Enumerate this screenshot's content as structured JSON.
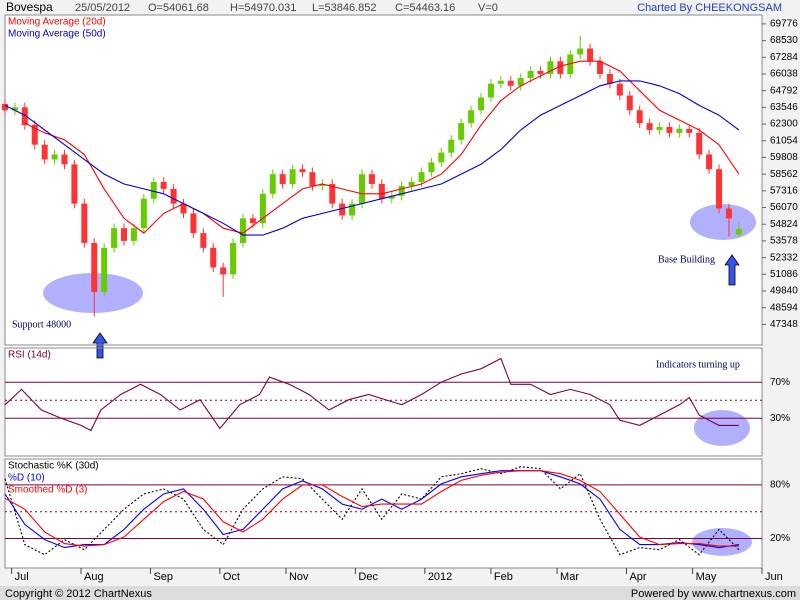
{
  "header": {
    "symbol": "Bovespa",
    "date": "25/05/2012",
    "open": "O=54061.68",
    "high": "H=54970.031",
    "low": "L=53846.852",
    "close": "C=54463.16",
    "volume": "V=0",
    "credit": "Charted By CHEEKONGSAM"
  },
  "chart_data": [
    {
      "type": "candlestick",
      "up_color": "#66cc00",
      "down_color": "#ff3333",
      "grid": false,
      "x": [
        0,
        3,
        6,
        9,
        12,
        15,
        18,
        21,
        24,
        27,
        30,
        33,
        36,
        39,
        42,
        45,
        48,
        51,
        54,
        57,
        60,
        63,
        66,
        69,
        72,
        75,
        78,
        81,
        84,
        87,
        90,
        93,
        96,
        99,
        102,
        105,
        108,
        111,
        114,
        117,
        120,
        123,
        126,
        129,
        132,
        135,
        138,
        141,
        144,
        147,
        150,
        153,
        156,
        159,
        162,
        165,
        168,
        171,
        174,
        177,
        180,
        183,
        186,
        189,
        192,
        195,
        198,
        201,
        204,
        207,
        210,
        213,
        216,
        219,
        222
      ],
      "open": [
        63800,
        63330,
        63550,
        62230,
        60760,
        59660,
        60030,
        59290,
        56360,
        53430,
        49770,
        53060,
        54530,
        53580,
        54530,
        56730,
        57980,
        57460,
        56360,
        55630,
        54160,
        53060,
        51600,
        51080,
        53430,
        55260,
        54900,
        57100,
        58560,
        57830,
        58930,
        58710,
        57680,
        57830,
        56360,
        55480,
        56360,
        58560,
        57830,
        56730,
        56950,
        57680,
        57980,
        58710,
        59440,
        60170,
        61130,
        62370,
        63330,
        64280,
        65310,
        65530,
        65160,
        65740,
        66260,
        66040,
        66990,
        66040,
        67500,
        67940,
        66990,
        66040,
        65310,
        64430,
        63330,
        62370,
        61860,
        62080,
        61640,
        61930,
        61640,
        60030,
        58930,
        56000,
        54061
      ],
      "high": [
        64150,
        63900,
        63900,
        62580,
        61110,
        60380,
        60380,
        59640,
        56710,
        53780,
        53410,
        54880,
        54880,
        54880,
        57080,
        58330,
        58330,
        57810,
        56710,
        55980,
        54510,
        53410,
        51950,
        53780,
        55610,
        55610,
        57450,
        58910,
        58910,
        59280,
        59280,
        59060,
        58180,
        58180,
        56710,
        56710,
        58910,
        58910,
        58180,
        57300,
        58030,
        58330,
        59060,
        59790,
        60520,
        61480,
        62720,
        63680,
        64630,
        65660,
        65880,
        65880,
        66090,
        66610,
        66610,
        67340,
        67340,
        67850,
        68900,
        68290,
        67340,
        66390,
        65660,
        64780,
        63680,
        62720,
        62430,
        62430,
        62280,
        62280,
        61990,
        60380,
        59280,
        56350,
        54970
      ],
      "low": [
        62980,
        62980,
        61880,
        60410,
        59310,
        59310,
        58940,
        56010,
        53080,
        47930,
        49420,
        52710,
        53230,
        53230,
        54180,
        56380,
        57110,
        56010,
        55280,
        53810,
        52710,
        51250,
        49400,
        50730,
        53080,
        54550,
        54550,
        56750,
        57480,
        57480,
        58360,
        57330,
        57330,
        56010,
        55130,
        55130,
        56010,
        57480,
        56380,
        56380,
        56600,
        57330,
        57630,
        58360,
        59090,
        59820,
        60780,
        62020,
        62980,
        63930,
        64960,
        64810,
        64810,
        65390,
        65690,
        65690,
        65690,
        65690,
        67150,
        66640,
        65690,
        64960,
        64080,
        62980,
        62020,
        61510,
        61510,
        61290,
        61290,
        61290,
        59680,
        58580,
        55650,
        53900,
        53846
      ],
      "close": [
        63330,
        63550,
        62230,
        60760,
        59660,
        60030,
        59290,
        56360,
        53430,
        49770,
        53060,
        54530,
        53580,
        54530,
        56730,
        57980,
        57460,
        56360,
        55630,
        54160,
        53060,
        51600,
        51080,
        53430,
        55260,
        54900,
        57100,
        58560,
        57830,
        58930,
        58710,
        57680,
        57830,
        56360,
        55480,
        56360,
        58560,
        57830,
        56730,
        56950,
        57680,
        57980,
        58710,
        59440,
        60170,
        61130,
        62370,
        63330,
        64280,
        65310,
        65530,
        65160,
        65740,
        66260,
        66040,
        66990,
        66040,
        67500,
        67940,
        66990,
        66040,
        65310,
        64430,
        63330,
        62370,
        61860,
        62080,
        61640,
        61930,
        61640,
        60030,
        58930,
        56000,
        55260,
        54463
      ],
      "series": [
        {
          "name": "Moving Average (20d)",
          "color": "#ff0000",
          "x": [
            6,
            12,
            18,
            24,
            30,
            36,
            42,
            48,
            54,
            60,
            66,
            72,
            78,
            84,
            90,
            96,
            102,
            108,
            114,
            120,
            126,
            132,
            138,
            144,
            150,
            156,
            162,
            168,
            174,
            180,
            186,
            192,
            198,
            204,
            210,
            216,
            222
          ],
          "values": [
            62373,
            61640,
            61127,
            60027,
            57462,
            55263,
            54163,
            55629,
            56363,
            55629,
            54529,
            54163,
            55263,
            56363,
            57462,
            57829,
            57462,
            57095,
            57095,
            57462,
            57829,
            58562,
            60027,
            62226,
            64059,
            65159,
            65892,
            66625,
            66991,
            66991,
            66258,
            64792,
            63326,
            62593,
            61860,
            60760,
            58562
          ]
        },
        {
          "name": "Moving Average (50d)",
          "color": "#0000cc",
          "x": [
            0,
            6,
            12,
            18,
            24,
            30,
            36,
            42,
            48,
            54,
            60,
            66,
            72,
            78,
            84,
            90,
            96,
            102,
            108,
            114,
            120,
            126,
            132,
            138,
            144,
            150,
            156,
            162,
            168,
            174,
            180,
            186,
            192,
            198,
            204,
            210,
            216,
            222
          ],
          "values": [
            63692,
            62959,
            61860,
            60760,
            59660,
            58562,
            57829,
            57462,
            57095,
            56363,
            55629,
            54896,
            54016,
            54016,
            54529,
            55263,
            55629,
            55996,
            56363,
            56729,
            57095,
            57462,
            57829,
            58562,
            59294,
            60394,
            61860,
            62959,
            63692,
            64425,
            65159,
            65525,
            65525,
            65159,
            64572,
            63692,
            62959,
            61860
          ]
        }
      ],
      "xlim": [
        0,
        229
      ],
      "ylim": [
        45810,
        70440
      ],
      "yticks": [
        69776,
        68530,
        67284,
        66038,
        64792,
        63546,
        62300,
        61054,
        59808,
        58562,
        57316,
        56070,
        54824,
        53578,
        52332,
        51086,
        49840,
        48594,
        47348
      ],
      "annotations": [
        "Support 48000",
        "Base Building"
      ]
    },
    {
      "type": "line",
      "grid": true,
      "dotted_line": 50,
      "series": [
        {
          "name": "RSI (14d)",
          "color": "#800040",
          "x": [
            0,
            5,
            11,
            17,
            23,
            26,
            29,
            35,
            41,
            47,
            53,
            59,
            65,
            71,
            77,
            80,
            86,
            92,
            98,
            104,
            110,
            120,
            126,
            132,
            138,
            144,
            150,
            153,
            159,
            165,
            171,
            177,
            183,
            186,
            192,
            198,
            204,
            207,
            210,
            216,
            222
          ],
          "values": [
            44.9,
            62,
            39.1,
            30,
            22,
            16.3,
            39.1,
            56.3,
            67.7,
            56.3,
            39.1,
            50.6,
            18.6,
            44.9,
            56.3,
            75.7,
            67.7,
            56.3,
            39.1,
            50.6,
            56.3,
            44.9,
            56.3,
            70,
            79.1,
            84.9,
            96.3,
            67.7,
            67.7,
            56.3,
            62,
            56.3,
            44.9,
            27.7,
            22,
            33.4,
            44.9,
            52.9,
            33.4,
            22,
            22
          ]
        }
      ],
      "xlim": [
        0,
        229
      ],
      "ylim": [
        -12,
        108
      ],
      "yticks": [
        {
          "value": 70,
          "label": "70%"
        },
        {
          "value": 30,
          "label": "30%"
        }
      ],
      "annotations": [
        "Indicators turning up"
      ]
    },
    {
      "type": "line",
      "grid": true,
      "dotted_line": 50,
      "series": [
        {
          "name": "Stochastic %K (30d)",
          "color": "#000000",
          "dash": true,
          "x": [
            0,
            6,
            12,
            18,
            24,
            30,
            36,
            42,
            48,
            54,
            60,
            66,
            72,
            78,
            84,
            90,
            96,
            102,
            108,
            114,
            120,
            126,
            132,
            138,
            144,
            150,
            156,
            162,
            168,
            174,
            180,
            186,
            192,
            198,
            204,
            210,
            216,
            222
          ],
          "values": [
            86.8,
            13.2,
            1.9,
            18.8,
            7.5,
            30.2,
            52.8,
            69.8,
            75.5,
            64.1,
            30.2,
            13.2,
            52.8,
            75.5,
            89.1,
            86.8,
            64.1,
            41.5,
            75.5,
            41.5,
            69.8,
            64.1,
            89.1,
            92.5,
            98.1,
            92.5,
            100.4,
            98.1,
            75.5,
            92.5,
            41.5,
            1.9,
            9.8,
            7.5,
            18.8,
            1.9,
            30.2,
            7.5
          ]
        },
        {
          "name": "%D (10)",
          "color": "#0000ff",
          "x": [
            0,
            6,
            12,
            18,
            24,
            30,
            36,
            42,
            48,
            54,
            60,
            66,
            72,
            78,
            84,
            90,
            96,
            102,
            108,
            114,
            120,
            126,
            132,
            138,
            144,
            150,
            156,
            162,
            168,
            174,
            180,
            186,
            192,
            198,
            204,
            210,
            216,
            222
          ],
          "values": [
            69.8,
            35.8,
            18.8,
            9.8,
            13.2,
            13.2,
            30.2,
            52.8,
            69.8,
            75.5,
            52.8,
            24.5,
            30.2,
            52.8,
            75.5,
            84.5,
            75.5,
            58.5,
            52.8,
            64.1,
            52.8,
            64.1,
            81.1,
            89.1,
            92.5,
            95.9,
            95.9,
            95.9,
            89.1,
            81.1,
            64.1,
            30.2,
            13.2,
            13.2,
            15.4,
            13.2,
            9.8,
            13.2
          ]
        },
        {
          "name": "Smoothed %D (3)",
          "color": "#ff0000",
          "x": [
            0,
            6,
            12,
            18,
            24,
            30,
            36,
            42,
            48,
            54,
            60,
            66,
            72,
            78,
            84,
            90,
            96,
            102,
            108,
            114,
            120,
            126,
            132,
            138,
            144,
            150,
            156,
            162,
            168,
            174,
            180,
            186,
            192,
            198,
            204,
            210,
            216,
            222
          ],
          "values": [
            65,
            52.8,
            27.3,
            14.3,
            11.5,
            13.2,
            21.7,
            41.5,
            61.3,
            72.7,
            64.2,
            38.7,
            27.4,
            41.5,
            64.2,
            80,
            80,
            67,
            55.7,
            58.5,
            58.5,
            58.5,
            72.6,
            85.1,
            90.8,
            94.2,
            95.9,
            95.9,
            92.5,
            85.1,
            72.6,
            47.2,
            21.7,
            13.2,
            14.3,
            14.3,
            11.5,
            11.5
          ]
        }
      ],
      "xlim": [
        0,
        229
      ],
      "ylim": [
        -13,
        109
      ],
      "yticks": [
        {
          "value": 80,
          "label": "80%"
        },
        {
          "value": 20,
          "label": "20%"
        }
      ],
      "xticks": [
        {
          "value": 2,
          "label": "Jul"
        },
        {
          "value": 23,
          "label": "Aug"
        },
        {
          "value": 44,
          "label": "Sep"
        },
        {
          "value": 65,
          "label": "Oct"
        },
        {
          "value": 85,
          "label": "Nov"
        },
        {
          "value": 106,
          "label": "Dec"
        },
        {
          "value": 127,
          "label": "2012"
        },
        {
          "value": 147,
          "label": "Feb"
        },
        {
          "value": 167,
          "label": "Mar"
        },
        {
          "value": 188,
          "label": "Apr"
        },
        {
          "value": 208,
          "label": "May"
        },
        {
          "value": 229,
          "label": "Jun"
        }
      ]
    }
  ],
  "footer": {
    "copyright": "Copyright © 2012 ChartNexus",
    "powered": "Powered by www.chartnexus.com"
  }
}
